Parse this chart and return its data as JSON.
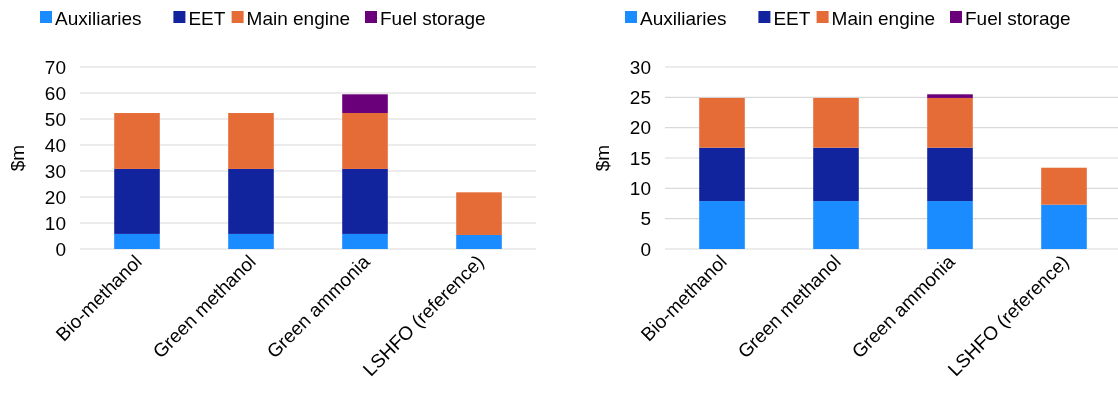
{
  "chart_data": [
    {
      "type": "bar",
      "stacked": true,
      "ylabel": "$m",
      "categories": [
        "Bio-methanol",
        "Green methanol",
        "Green ammonia",
        "LSHFO (reference)"
      ],
      "ylim": [
        0,
        70
      ],
      "yticks": [
        0,
        10,
        20,
        30,
        40,
        50,
        60,
        70
      ],
      "grid": "y",
      "legend": "top",
      "series": [
        {
          "name": "Auxiliaries",
          "color": "#1a8cff",
          "values": [
            5.8,
            5.8,
            5.8,
            5.4
          ]
        },
        {
          "name": "EET",
          "color": "#12239e",
          "values": [
            25,
            25,
            25,
            null
          ]
        },
        {
          "name": "Main engine",
          "color": "#e66c37",
          "values": [
            21.5,
            21.5,
            21.5,
            16.4
          ]
        },
        {
          "name": "Fuel storage",
          "color": "#6b007b",
          "values": [
            null,
            null,
            7.2,
            null
          ]
        }
      ]
    },
    {
      "type": "bar",
      "stacked": true,
      "ylabel": "$m",
      "categories": [
        "Bio-methanol",
        "Green methanol",
        "Green ammonia",
        "LSHFO (reference)"
      ],
      "ylim": [
        0,
        30
      ],
      "yticks": [
        0,
        5,
        10,
        15,
        20,
        25,
        30
      ],
      "grid": "y",
      "legend": "top",
      "series": [
        {
          "name": "Auxiliaries",
          "color": "#1a8cff",
          "values": [
            7.9,
            7.9,
            7.9,
            7.3
          ]
        },
        {
          "name": "EET",
          "color": "#12239e",
          "values": [
            8.8,
            8.8,
            8.8,
            null
          ]
        },
        {
          "name": "Main engine",
          "color": "#e66c37",
          "values": [
            8.2,
            8.2,
            8.2,
            6.1
          ]
        },
        {
          "name": "Fuel storage",
          "color": "#6b007b",
          "values": [
            null,
            null,
            0.6,
            null
          ]
        }
      ]
    }
  ]
}
